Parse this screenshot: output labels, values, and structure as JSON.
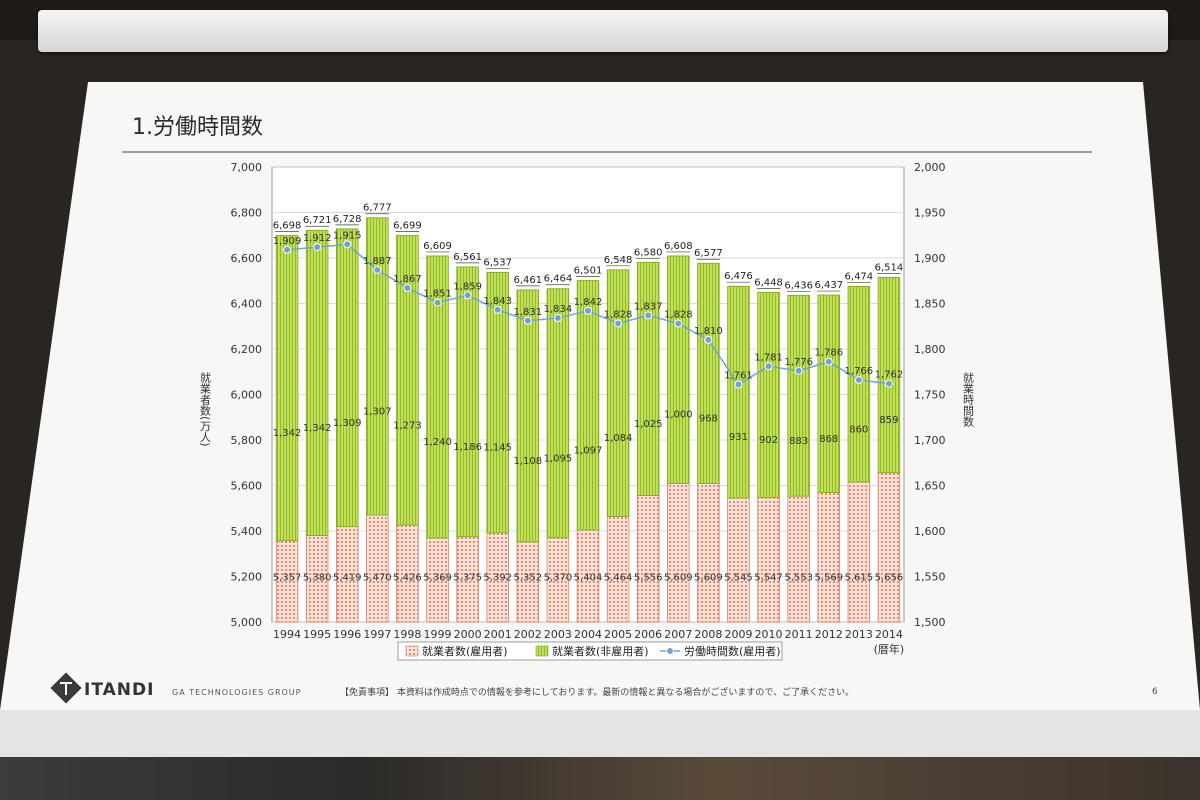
{
  "slide": {
    "title": "1.労働時間数",
    "brand": "ITANDI",
    "group": "GA TECHNOLOGIES GROUP",
    "disclaimer": "【免責事項】 本資料は作成時点での情報を参考にしております。最新の情報と異なる場合がございますので、ご了承ください。",
    "page_number": "6"
  },
  "chart_data": {
    "type": "bar",
    "stacked": true,
    "categories": [
      "1994",
      "1995",
      "1996",
      "1997",
      "1998",
      "1999",
      "2000",
      "2001",
      "2002",
      "2003",
      "2004",
      "2005",
      "2006",
      "2007",
      "2008",
      "2009",
      "2010",
      "2011",
      "2012",
      "2013",
      "2014"
    ],
    "x_unit_label": "(暦年)",
    "left_axis_label": "就業者数(万人)",
    "right_axis_label": "就業時間数",
    "left_ylim": [
      5000,
      7000
    ],
    "left_ticks": [
      "5,000",
      "5,200",
      "5,400",
      "5,600",
      "5,800",
      "6,000",
      "6,200",
      "6,400",
      "6,600",
      "6,800",
      "7,000"
    ],
    "right_ylim": [
      1500,
      2000
    ],
    "right_ticks": [
      "1,500",
      "1,550",
      "1,600",
      "1,650",
      "1,700",
      "1,750",
      "1,800",
      "1,850",
      "1,900",
      "1,950",
      "2,000"
    ],
    "series": [
      {
        "name": "就業者数(雇用者)",
        "axis": "left",
        "color": "#f4a28c",
        "values": [
          5357,
          5380,
          5419,
          5470,
          5426,
          5369,
          5375,
          5392,
          5352,
          5370,
          5404,
          5464,
          5556,
          5609,
          5609,
          5545,
          5547,
          5553,
          5569,
          5615,
          5656
        ],
        "labels": [
          "5,357",
          "5,380",
          "5,419",
          "5,470",
          "5,426",
          "5,369",
          "5,375",
          "5,392",
          "5,352",
          "5,370",
          "5,404",
          "5,464",
          "5,556",
          "5,609",
          "5,609",
          "5,545",
          "5,547",
          "5,553",
          "5,569",
          "5,615",
          "5,656"
        ]
      },
      {
        "name": "就業者数(非雇用者)",
        "axis": "left",
        "color": "#a8cf3a",
        "values": [
          1342,
          1342,
          1309,
          1307,
          1273,
          1240,
          1186,
          1145,
          1108,
          1095,
          1097,
          1084,
          1025,
          1000,
          968,
          931,
          902,
          883,
          868,
          860,
          859
        ],
        "labels": [
          "1,342",
          "1,342",
          "1,309",
          "1,307",
          "1,273",
          "1,240",
          "1,186",
          "1,145",
          "1,108",
          "1,095",
          "1,097",
          "1,084",
          "1,025",
          "1,000",
          "968",
          "931",
          "902",
          "883",
          "868",
          "860",
          "859"
        ]
      },
      {
        "name": "労働時間数(雇用者)",
        "axis": "right",
        "type": "line",
        "color": "#6fa3d8",
        "values": [
          1909,
          1912,
          1915,
          1887,
          1867,
          1851,
          1859,
          1843,
          1831,
          1834,
          1842,
          1828,
          1837,
          1828,
          1810,
          1761,
          1781,
          1776,
          1786,
          1766,
          1762
        ],
        "labels": [
          "1,909",
          "1,912",
          "1,915",
          "1,887",
          "1,867",
          "1,851",
          "1,859",
          "1,843",
          "1,831",
          "1,834",
          "1,842",
          "1,828",
          "1,837",
          "1,828",
          "1,810",
          "1,761",
          "1,781",
          "1,776",
          "1,786",
          "1,766",
          "1,762"
        ]
      }
    ],
    "totals": [
      "6,698",
      "6,721",
      "6,728",
      "6,777",
      "6,699",
      "6,609",
      "6,561",
      "6,537",
      "6,461",
      "6,464",
      "6,501",
      "6,548",
      "6,580",
      "6,608",
      "6,577",
      "6,476",
      "6,448",
      "6,436",
      "6,437",
      "6,474",
      "6,514"
    ],
    "total_values": [
      6698,
      6721,
      6728,
      6777,
      6699,
      6609,
      6561,
      6537,
      6461,
      6464,
      6501,
      6548,
      6580,
      6608,
      6577,
      6476,
      6448,
      6436,
      6437,
      6474,
      6514
    ],
    "legend": [
      "就業者数(雇用者)",
      "就業者数(非雇用者)",
      "労働時間数(雇用者)"
    ],
    "legend_position": "bottom",
    "grid": true
  }
}
